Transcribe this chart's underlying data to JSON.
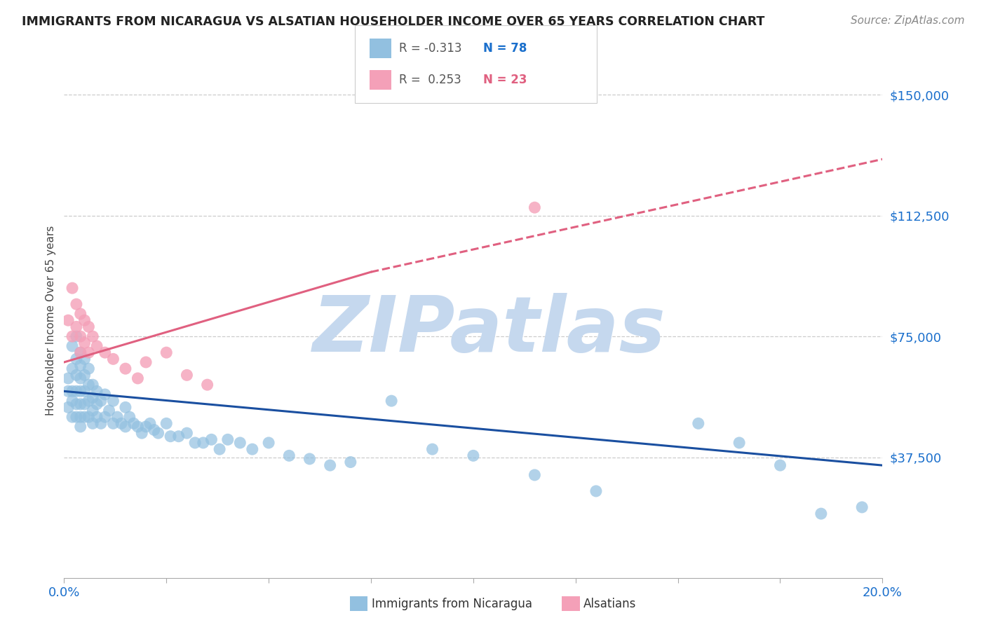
{
  "title": "IMMIGRANTS FROM NICARAGUA VS ALSATIAN HOUSEHOLDER INCOME OVER 65 YEARS CORRELATION CHART",
  "source": "Source: ZipAtlas.com",
  "ylabel": "Householder Income Over 65 years",
  "legend_entry1": "Immigrants from Nicaragua",
  "legend_entry2": "Alsatians",
  "y_ticks": [
    0,
    37500,
    75000,
    112500,
    150000
  ],
  "y_tick_labels": [
    "",
    "$37,500",
    "$75,000",
    "$112,500",
    "$150,000"
  ],
  "x_ticks": [
    0.0,
    0.025,
    0.05,
    0.075,
    0.1,
    0.125,
    0.15,
    0.175,
    0.2
  ],
  "xlim": [
    0.0,
    0.2
  ],
  "ylim": [
    0,
    160000
  ],
  "blue_color": "#92C0E0",
  "pink_color": "#F4A0B8",
  "blue_line_color": "#1A4FA0",
  "pink_line_color": "#E06080",
  "watermark_color": "#C5D8EE",
  "blue_trend": [
    0.0,
    0.2,
    58000,
    35000
  ],
  "pink_solid_trend": [
    0.0,
    0.075,
    67000,
    95000
  ],
  "pink_dashed_trend": [
    0.075,
    0.2,
    95000,
    130000
  ],
  "blue_x": [
    0.001,
    0.001,
    0.001,
    0.002,
    0.002,
    0.002,
    0.002,
    0.002,
    0.003,
    0.003,
    0.003,
    0.003,
    0.003,
    0.003,
    0.004,
    0.004,
    0.004,
    0.004,
    0.004,
    0.004,
    0.004,
    0.005,
    0.005,
    0.005,
    0.005,
    0.005,
    0.006,
    0.006,
    0.006,
    0.006,
    0.007,
    0.007,
    0.007,
    0.007,
    0.008,
    0.008,
    0.008,
    0.009,
    0.009,
    0.01,
    0.01,
    0.011,
    0.012,
    0.012,
    0.013,
    0.014,
    0.015,
    0.015,
    0.016,
    0.017,
    0.018,
    0.019,
    0.02,
    0.021,
    0.022,
    0.023,
    0.025,
    0.026,
    0.028,
    0.03,
    0.032,
    0.034,
    0.036,
    0.038,
    0.04,
    0.043,
    0.046,
    0.05,
    0.055,
    0.06,
    0.065,
    0.07,
    0.08,
    0.09,
    0.1,
    0.115,
    0.13,
    0.155,
    0.165,
    0.175,
    0.185,
    0.195
  ],
  "blue_y": [
    62000,
    58000,
    53000,
    72000,
    65000,
    58000,
    55000,
    50000,
    75000,
    68000,
    63000,
    58000,
    54000,
    50000,
    70000,
    66000,
    62000,
    58000,
    54000,
    50000,
    47000,
    68000,
    63000,
    58000,
    54000,
    50000,
    65000,
    60000,
    55000,
    50000,
    60000,
    56000,
    52000,
    48000,
    58000,
    54000,
    50000,
    55000,
    48000,
    57000,
    50000,
    52000,
    55000,
    48000,
    50000,
    48000,
    53000,
    47000,
    50000,
    48000,
    47000,
    45000,
    47000,
    48000,
    46000,
    45000,
    48000,
    44000,
    44000,
    45000,
    42000,
    42000,
    43000,
    40000,
    43000,
    42000,
    40000,
    42000,
    38000,
    37000,
    35000,
    36000,
    55000,
    40000,
    38000,
    32000,
    27000,
    48000,
    42000,
    35000,
    20000,
    22000
  ],
  "pink_x": [
    0.001,
    0.002,
    0.002,
    0.003,
    0.003,
    0.004,
    0.004,
    0.004,
    0.005,
    0.005,
    0.006,
    0.006,
    0.007,
    0.008,
    0.01,
    0.012,
    0.015,
    0.018,
    0.02,
    0.025,
    0.03,
    0.035,
    0.115
  ],
  "pink_y": [
    80000,
    90000,
    75000,
    85000,
    78000,
    82000,
    75000,
    70000,
    80000,
    73000,
    78000,
    70000,
    75000,
    72000,
    70000,
    68000,
    65000,
    62000,
    67000,
    70000,
    63000,
    60000,
    115000
  ]
}
